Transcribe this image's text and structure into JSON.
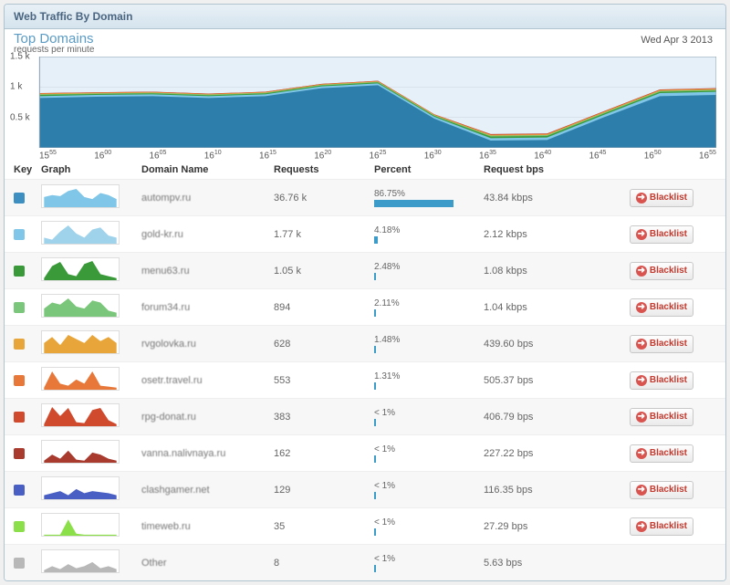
{
  "panel": {
    "title": "Web Traffic By Domain"
  },
  "chart": {
    "title": "Top Domains",
    "subtitle": "requests per minute",
    "date": "Wed Apr 3 2013",
    "ylim": [
      0,
      1500
    ],
    "yticks": [
      "0.5 k",
      "1 k",
      "1.5 k"
    ],
    "xticks": [
      "15<sup>55</sup>",
      "16<sup>00</sup>",
      "16<sup>05</sup>",
      "16<sup>10</sup>",
      "16<sup>15</sup>",
      "16<sup>20</sup>",
      "16<sup>25</sup>",
      "16<sup>30</sup>",
      "16<sup>35</sup>",
      "16<sup>40</sup>",
      "16<sup>45</sup>",
      "16<sup>50</sup>",
      "16<sup>55</sup>"
    ],
    "background": "#e6f0f8",
    "grid_color": "#c8d4de",
    "series": [
      {
        "color": "#2e7eab",
        "values": [
          820,
          840,
          850,
          820,
          850,
          980,
          1030,
          480,
          120,
          130,
          500,
          850,
          870
        ]
      },
      {
        "color": "#7fc6e8",
        "values": [
          850,
          870,
          880,
          850,
          880,
          1010,
          1060,
          510,
          160,
          170,
          540,
          900,
          920
        ]
      },
      {
        "color": "#3a9a3a",
        "values": [
          870,
          885,
          895,
          865,
          895,
          1025,
          1075,
          525,
          185,
          195,
          560,
          920,
          940
        ]
      },
      {
        "color": "#7ac67a",
        "values": [
          880,
          895,
          905,
          875,
          905,
          1035,
          1085,
          535,
          200,
          210,
          575,
          935,
          955
        ]
      },
      {
        "color": "#e8a63a",
        "values": [
          888,
          903,
          912,
          882,
          912,
          1042,
          1092,
          542,
          210,
          220,
          585,
          945,
          965
        ]
      },
      {
        "color": "#e8783a",
        "values": [
          894,
          908,
          917,
          887,
          917,
          1047,
          1097,
          547,
          217,
          227,
          592,
          952,
          972
        ]
      },
      {
        "color": "#d04a2e",
        "values": [
          898,
          912,
          920,
          890,
          920,
          1050,
          1100,
          550,
          222,
          232,
          596,
          956,
          976
        ]
      },
      {
        "color": "#a83a2e",
        "values": [
          900,
          914,
          922,
          892,
          922,
          1052,
          1102,
          552,
          226,
          236,
          600,
          960,
          980
        ]
      }
    ]
  },
  "columns": {
    "key": "Key",
    "graph": "Graph",
    "domain": "Domain Name",
    "req": "Requests",
    "pct": "Percent",
    "bps": "Request bps"
  },
  "blacklist_label": "Blacklist",
  "rows": [
    {
      "key_color": "#3d8fc1",
      "spark_color": "#7fc6e8",
      "spark": [
        0.5,
        0.6,
        0.55,
        0.8,
        0.9,
        0.5,
        0.4,
        0.7,
        0.6,
        0.4
      ],
      "domain": "autompv.ru",
      "requests": "36.76 k",
      "percent": "86.75%",
      "pct_bar": 86.75,
      "bps": "43.84 kbps",
      "blacklist": true
    },
    {
      "key_color": "#7fc6e8",
      "spark_color": "#9fd3ec",
      "spark": [
        0.3,
        0.2,
        0.6,
        0.9,
        0.5,
        0.3,
        0.7,
        0.8,
        0.4,
        0.3
      ],
      "domain": "gold-kr.ru",
      "requests": "1.77 k",
      "percent": "4.18%",
      "pct_bar": 4.18,
      "bps": "2.12 kbps",
      "blacklist": true
    },
    {
      "key_color": "#3a9a3a",
      "spark_color": "#3a9a3a",
      "spark": [
        0.1,
        0.7,
        0.9,
        0.3,
        0.2,
        0.8,
        0.95,
        0.3,
        0.2,
        0.1
      ],
      "domain": "menu63.ru",
      "requests": "1.05 k",
      "percent": "2.48%",
      "pct_bar": 2.48,
      "bps": "1.08 kbps",
      "blacklist": true
    },
    {
      "key_color": "#7ac67a",
      "spark_color": "#7ac67a",
      "spark": [
        0.4,
        0.7,
        0.6,
        0.9,
        0.5,
        0.4,
        0.8,
        0.7,
        0.3,
        0.2
      ],
      "domain": "forum34.ru",
      "requests": "894",
      "percent": "2.11%",
      "pct_bar": 2.11,
      "bps": "1.04 kbps",
      "blacklist": true
    },
    {
      "key_color": "#e8a63a",
      "spark_color": "#e8a63a",
      "spark": [
        0.5,
        0.8,
        0.4,
        0.9,
        0.7,
        0.5,
        0.9,
        0.6,
        0.8,
        0.5
      ],
      "domain": "rvgolovka.ru",
      "requests": "628",
      "percent": "1.48%",
      "pct_bar": 1.48,
      "bps": "439.60 bps",
      "blacklist": true
    },
    {
      "key_color": "#e8783a",
      "spark_color": "#e8783a",
      "spark": [
        0.1,
        0.9,
        0.3,
        0.2,
        0.5,
        0.3,
        0.9,
        0.2,
        0.15,
        0.1
      ],
      "domain": "osetr.travel.ru",
      "requests": "553",
      "percent": "1.31%",
      "pct_bar": 1.31,
      "bps": "505.37 bps",
      "blacklist": true
    },
    {
      "key_color": "#d04a2e",
      "spark_color": "#d04a2e",
      "spark": [
        0.1,
        0.95,
        0.5,
        0.9,
        0.2,
        0.15,
        0.8,
        0.9,
        0.3,
        0.1
      ],
      "domain": "rpg-donat.ru",
      "requests": "383",
      "percent": "< 1%",
      "pct_bar": 0.9,
      "bps": "406.79 bps",
      "blacklist": true
    },
    {
      "key_color": "#a83a2e",
      "spark_color": "#a83a2e",
      "spark": [
        0.1,
        0.4,
        0.2,
        0.6,
        0.15,
        0.1,
        0.5,
        0.4,
        0.2,
        0.1
      ],
      "domain": "vanna.nalivnaya.ru",
      "requests": "162",
      "percent": "< 1%",
      "pct_bar": 0.4,
      "bps": "227.22 bps",
      "blacklist": true
    },
    {
      "key_color": "#4a5fc4",
      "spark_color": "#4a5fc4",
      "spark": [
        0.2,
        0.3,
        0.4,
        0.2,
        0.5,
        0.3,
        0.4,
        0.35,
        0.3,
        0.2
      ],
      "domain": "clashgamer.net",
      "requests": "129",
      "percent": "< 1%",
      "pct_bar": 0.3,
      "bps": "116.35 bps",
      "blacklist": true
    },
    {
      "key_color": "#8be04a",
      "spark_color": "#8be04a",
      "spark": [
        0.05,
        0.05,
        0.05,
        0.8,
        0.1,
        0.05,
        0.05,
        0.05,
        0.05,
        0.05
      ],
      "domain": "timeweb.ru",
      "requests": "35",
      "percent": "< 1%",
      "pct_bar": 0.1,
      "bps": "27.29 bps",
      "blacklist": true
    },
    {
      "key_color": "#b8b8b8",
      "spark_color": "#b8b8b8",
      "spark": [
        0.1,
        0.3,
        0.15,
        0.4,
        0.2,
        0.3,
        0.5,
        0.2,
        0.3,
        0.15
      ],
      "domain": "Other",
      "requests": "8",
      "percent": "< 1%",
      "pct_bar": 0.05,
      "bps": "5.63 bps",
      "blacklist": false
    }
  ]
}
